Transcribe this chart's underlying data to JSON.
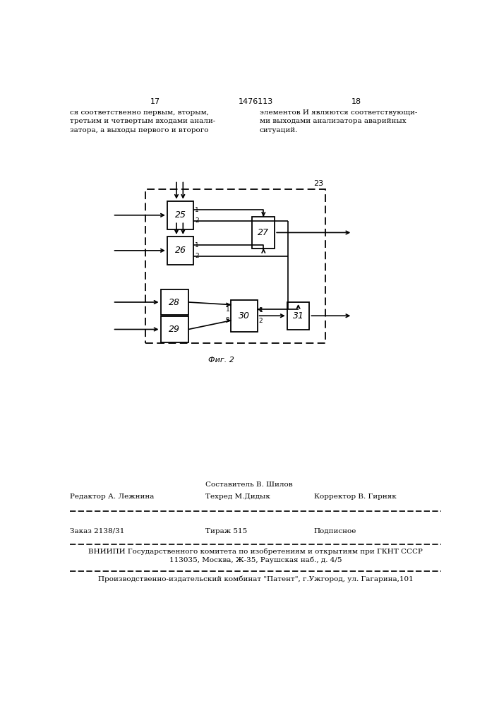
{
  "page_width": 7.07,
  "page_height": 10.0,
  "bg_color": "#ffffff",
  "header_left_num": "17",
  "header_center": "1476113",
  "header_right_num": "18",
  "text_top_left": "ся соответственно первым, вторым,\nтретьим и четвертым входами анали-\nзатора, а выходы первого и второго",
  "text_top_right": "элементов И являются соответствующи-\nми выходами анализатора аварийных\nситуаций.",
  "fig_label": "Фиг. 2",
  "box_23_label": "23",
  "footer_line1_col2_top": "Составитель В. Шилов",
  "footer_line1_col1": "Редактор А. Лежнина",
  "footer_line1_col2_bot": "Техред М.Дидык",
  "footer_line1_col3": "Корректор В. Гирняк",
  "footer_order": "Заказ 2138/31",
  "footer_tirazh": "Тираж 515",
  "footer_podp": "Подписное",
  "footer_vniipи": "ВНИИПИ Государственного комитета по изобретениям и открытиям при ГКНТ СССР",
  "footer_address": "113035, Москва, Ж-35, Раушская наб., д. 4/5",
  "footer_patent": "Производственно-издательский комбинат \"Патент\", г.Ужгород, ул. Гагарина,101"
}
